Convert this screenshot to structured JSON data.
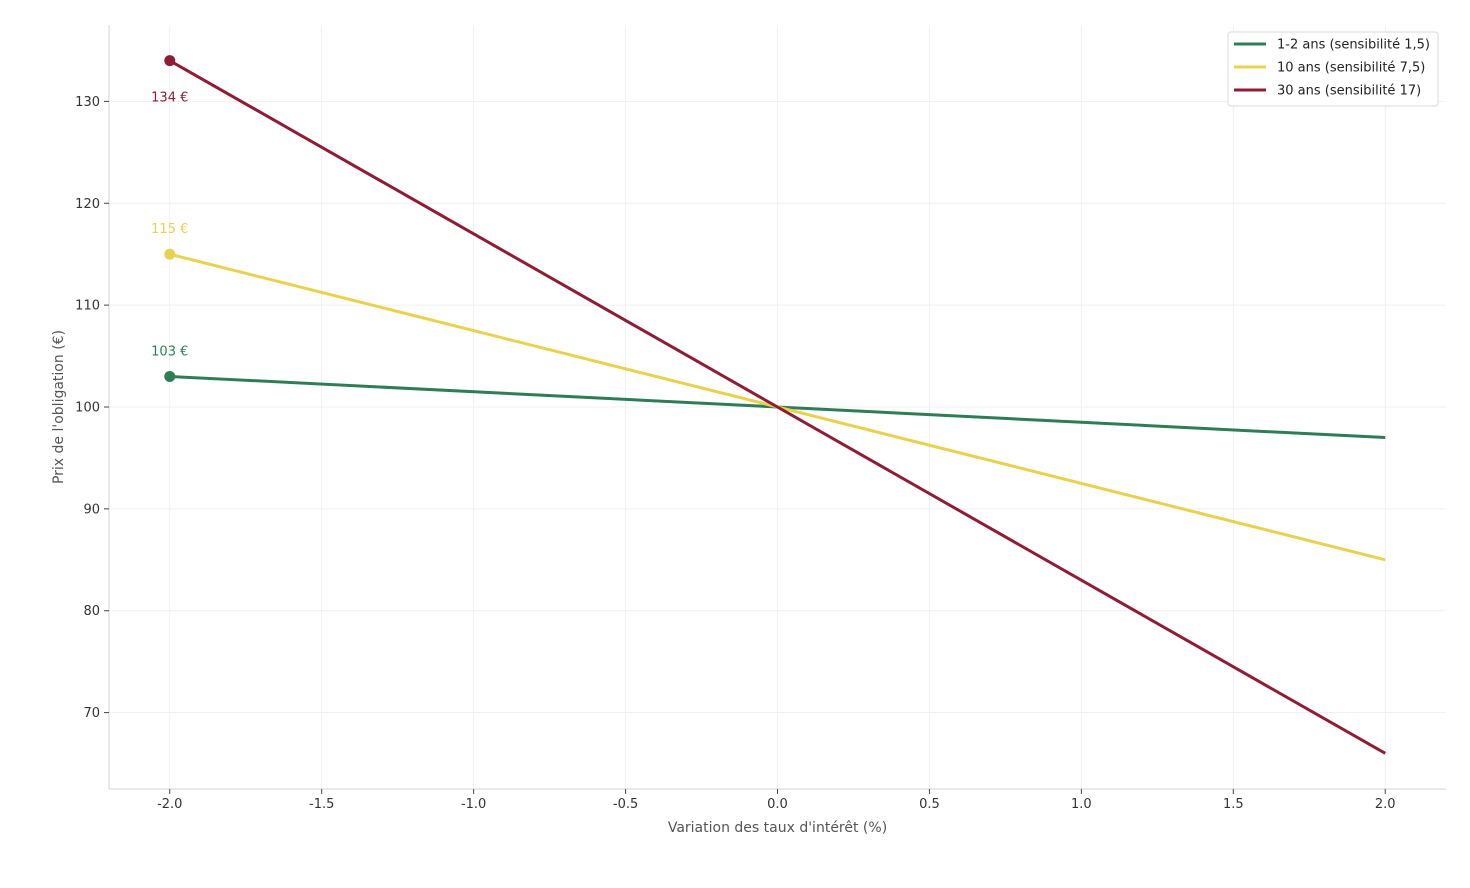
{
  "chart_data": {
    "type": "line",
    "title": "",
    "xlabel": "Variation des taux d'intérêt (%)",
    "ylabel": "Prix de l'obligation (€)",
    "xlim": [
      -2.2,
      2.2
    ],
    "ylim": [
      62.5,
      137.5
    ],
    "x_ticks": [
      -2.0,
      -1.5,
      -1.0,
      -0.5,
      0.0,
      0.5,
      1.0,
      1.5,
      2.0
    ],
    "x_tick_labels": [
      "-2.0",
      "-1.5",
      "-1.0",
      "-0.5",
      "0.0",
      "0.5",
      "1.0",
      "1.5",
      "2.0"
    ],
    "y_ticks": [
      70,
      80,
      90,
      100,
      110,
      120,
      130
    ],
    "y_tick_labels": [
      "70",
      "80",
      "90",
      "100",
      "110",
      "120",
      "130"
    ],
    "grid": true,
    "legend_position": "top-right",
    "series": [
      {
        "name": "1-2 ans (sensibilité 1,5)",
        "color": "#2e7d57",
        "x": [
          -2.0,
          2.0
        ],
        "y": [
          103,
          97
        ],
        "marker_point": {
          "x": -2.0,
          "y": 103
        },
        "annotation": "103 €",
        "annotation_position": "above"
      },
      {
        "name": "10 ans (sensibilité 7,5)",
        "color": "#e8d14e",
        "x": [
          -2.0,
          2.0
        ],
        "y": [
          115,
          85
        ],
        "marker_point": {
          "x": -2.0,
          "y": 115
        },
        "annotation": "115 €",
        "annotation_position": "above"
      },
      {
        "name": "30 ans (sensibilité 17)",
        "color": "#8e1c35",
        "x": [
          -2.0,
          2.0
        ],
        "y": [
          134,
          66
        ],
        "marker_point": {
          "x": -2.0,
          "y": 134
        },
        "annotation": "134 €",
        "annotation_position": "below"
      }
    ]
  }
}
